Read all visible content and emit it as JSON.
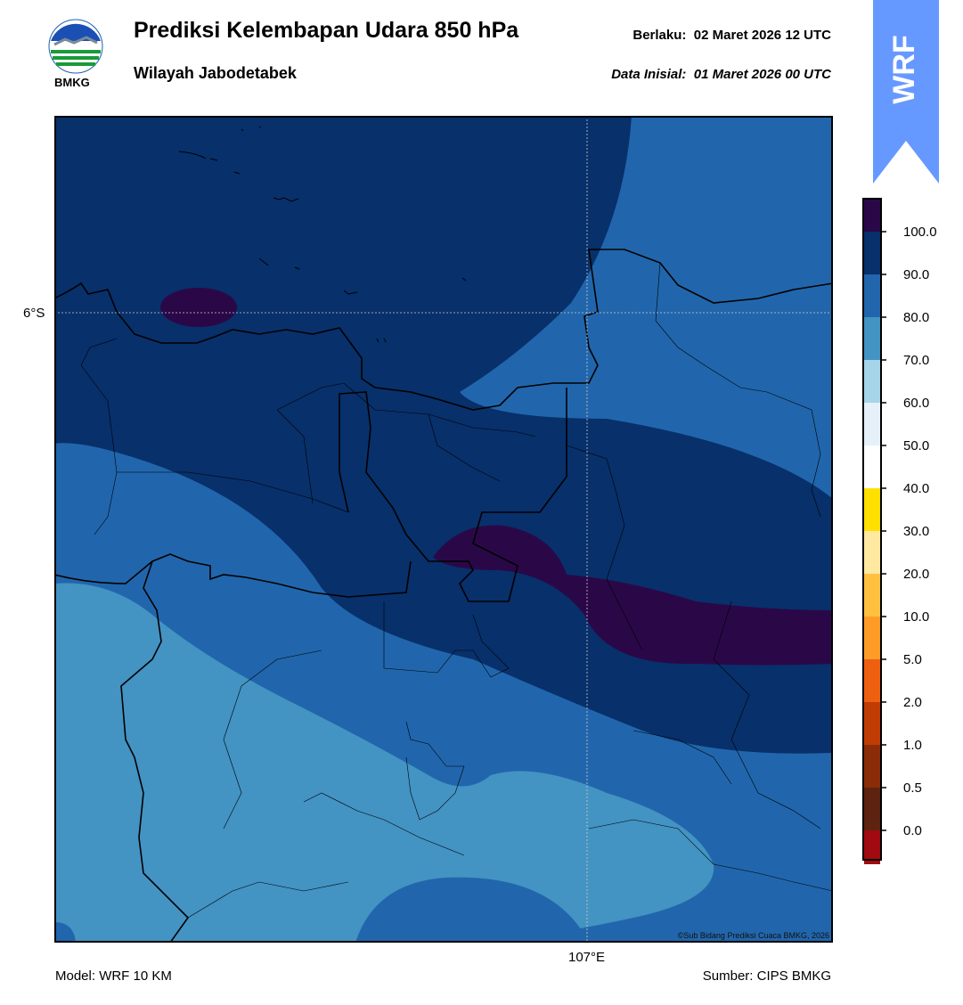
{
  "header": {
    "title": "Prediksi Kelembapan Udara 850 hPa",
    "subtitle": "Wilayah Jabodetabek",
    "valid_label": "Berlaku:",
    "valid_time": "02 Maret 2026 12 UTC",
    "init_label": "Data Inisial:",
    "init_time": "01 Maret 2026 00 UTC"
  },
  "logo": {
    "icon": "bmkg-logo-icon",
    "text": "BMKG"
  },
  "badge": {
    "text": "WRF",
    "color": "#6699ff"
  },
  "map": {
    "lat_label": "6°S",
    "lon_label": "107°E",
    "copyright": "©Sub Bidang Prediksi Cuaca BMKG, 2026"
  },
  "footer": {
    "model": "Model: WRF 10 KM",
    "source": "Sumber: CIPS BMKG"
  },
  "colorbar": {
    "labels": [
      "100.0",
      "90.0",
      "80.0",
      "70.0",
      "60.0",
      "50.0",
      "40.0",
      "30.0",
      "20.0",
      "10.0",
      "5.0",
      "2.0",
      "1.0",
      "0.5",
      "0.0"
    ],
    "colors": [
      "#2a0848",
      "#08306b",
      "#2166ac",
      "#4393c3",
      "#a6d4e8",
      "#e6f0f8",
      "#ffffff",
      "#ffe000",
      "#ffe8a0",
      "#ffc040",
      "#ff9c28",
      "#ee6010",
      "#c03c04",
      "#8a2c08",
      "#5e2210",
      "#a00a10",
      "#e83828"
    ]
  }
}
